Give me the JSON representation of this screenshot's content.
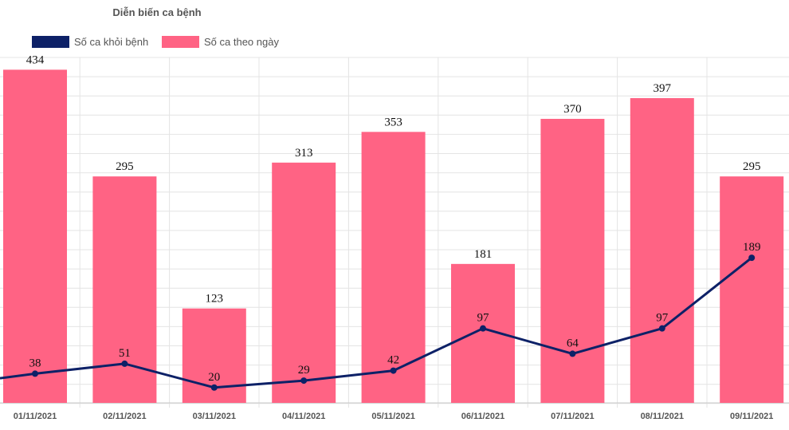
{
  "chart_data": {
    "type": "bar",
    "title": "Diễn biến ca bệnh",
    "categories": [
      "01/11/2021",
      "02/11/2021",
      "03/11/2021",
      "04/11/2021",
      "05/11/2021",
      "06/11/2021",
      "07/11/2021",
      "08/11/2021",
      "09/11/2021"
    ],
    "series": [
      {
        "name": "Số ca theo ngày",
        "kind": "bar",
        "color": "#ff6384",
        "values": [
          434,
          295,
          123,
          313,
          353,
          181,
          370,
          397,
          295
        ]
      },
      {
        "name": "Số ca khỏi bệnh",
        "kind": "line",
        "color": "#0d2167",
        "values": [
          38,
          51,
          20,
          29,
          42,
          97,
          64,
          97,
          189
        ]
      }
    ],
    "legend_order": [
      "Số ca khỏi bệnh",
      "Số ca theo ngày"
    ],
    "legend_position": "top-left",
    "ylim": [
      0,
      450
    ],
    "grid": true,
    "data_labels": true
  }
}
